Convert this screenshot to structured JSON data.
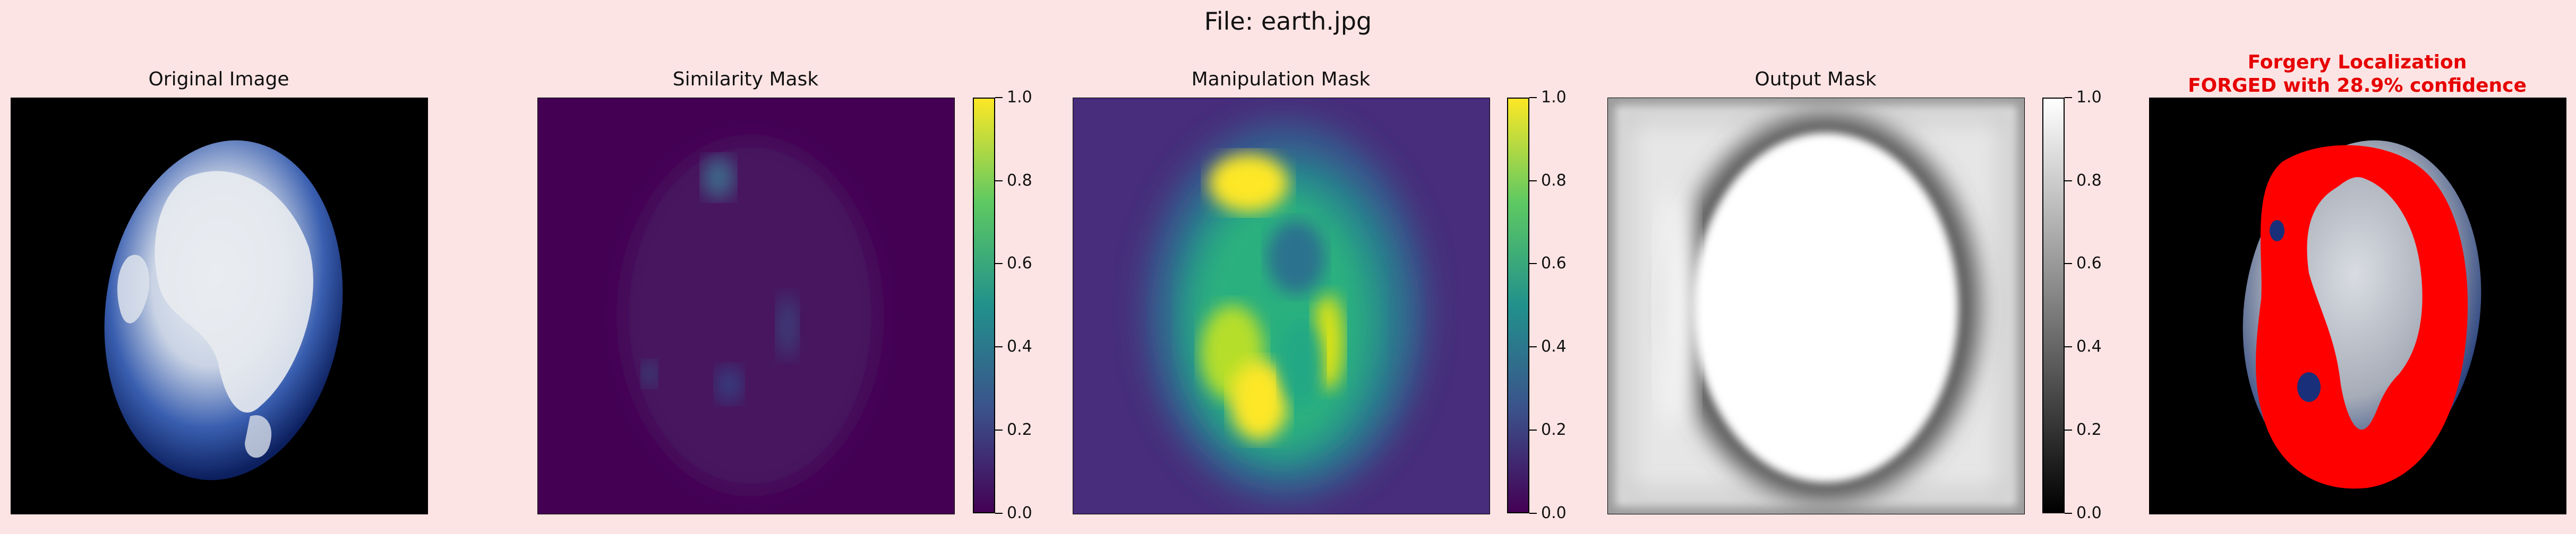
{
  "figure": {
    "title": "File: earth.jpg"
  },
  "panels": [
    {
      "id": "original",
      "title": "Original Image"
    },
    {
      "id": "similarity",
      "title": "Similarity Mask"
    },
    {
      "id": "manipulation",
      "title": "Manipulation Mask"
    },
    {
      "id": "output",
      "title": "Output Mask"
    },
    {
      "id": "localization",
      "title_line1": "Forgery Localization",
      "title_line2": "FORGED with 28.9% confidence"
    }
  ],
  "colorbar": {
    "ticks": [
      "1.0",
      "0.8",
      "0.6",
      "0.4",
      "0.2",
      "0.0"
    ],
    "range": [
      0.0,
      1.0
    ]
  },
  "colors": {
    "background": "#fde4e4",
    "title_red": "#e60000",
    "overlay_red": "#ff0000"
  }
}
